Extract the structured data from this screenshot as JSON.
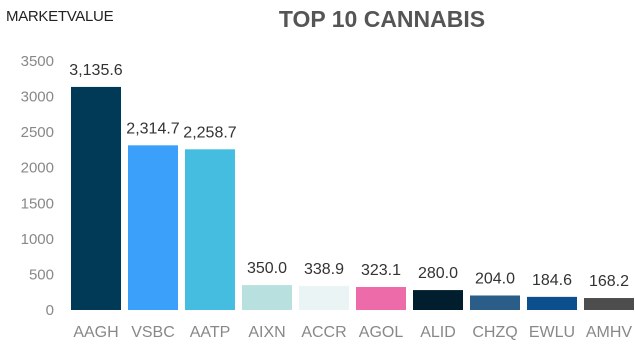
{
  "chart_data": {
    "type": "bar",
    "title": "TOP 10 CANNABIS",
    "ylabel": "MARKETVALUE",
    "xlabel": "",
    "categories": [
      "AAGH",
      "VSBC",
      "AATP",
      "AIXN",
      "ACCR",
      "AGOL",
      "ALID",
      "CHZQ",
      "EWLU",
      "AMHV"
    ],
    "values": [
      3135.6,
      2314.7,
      2258.7,
      350.0,
      338.9,
      323.1,
      280.0,
      204.0,
      184.6,
      168.2
    ],
    "value_labels": [
      "3,135.6",
      "2,314.7",
      "2,258.7",
      "350.0",
      "338.9",
      "323.1",
      "280.0",
      "204.0",
      "184.6",
      "168.2"
    ],
    "colors": [
      "#003a57",
      "#3aa0fa",
      "#45bde0",
      "#b8e0de",
      "#eaf4f4",
      "#ed6ba8",
      "#001e2e",
      "#2a5d87",
      "#0c4f8e",
      "#4d4d4d"
    ],
    "ylim": [
      0,
      3500
    ],
    "yticks": [
      0,
      500,
      1000,
      1500,
      2000,
      2500,
      3000,
      3500
    ],
    "grid": false,
    "legend": "none"
  }
}
